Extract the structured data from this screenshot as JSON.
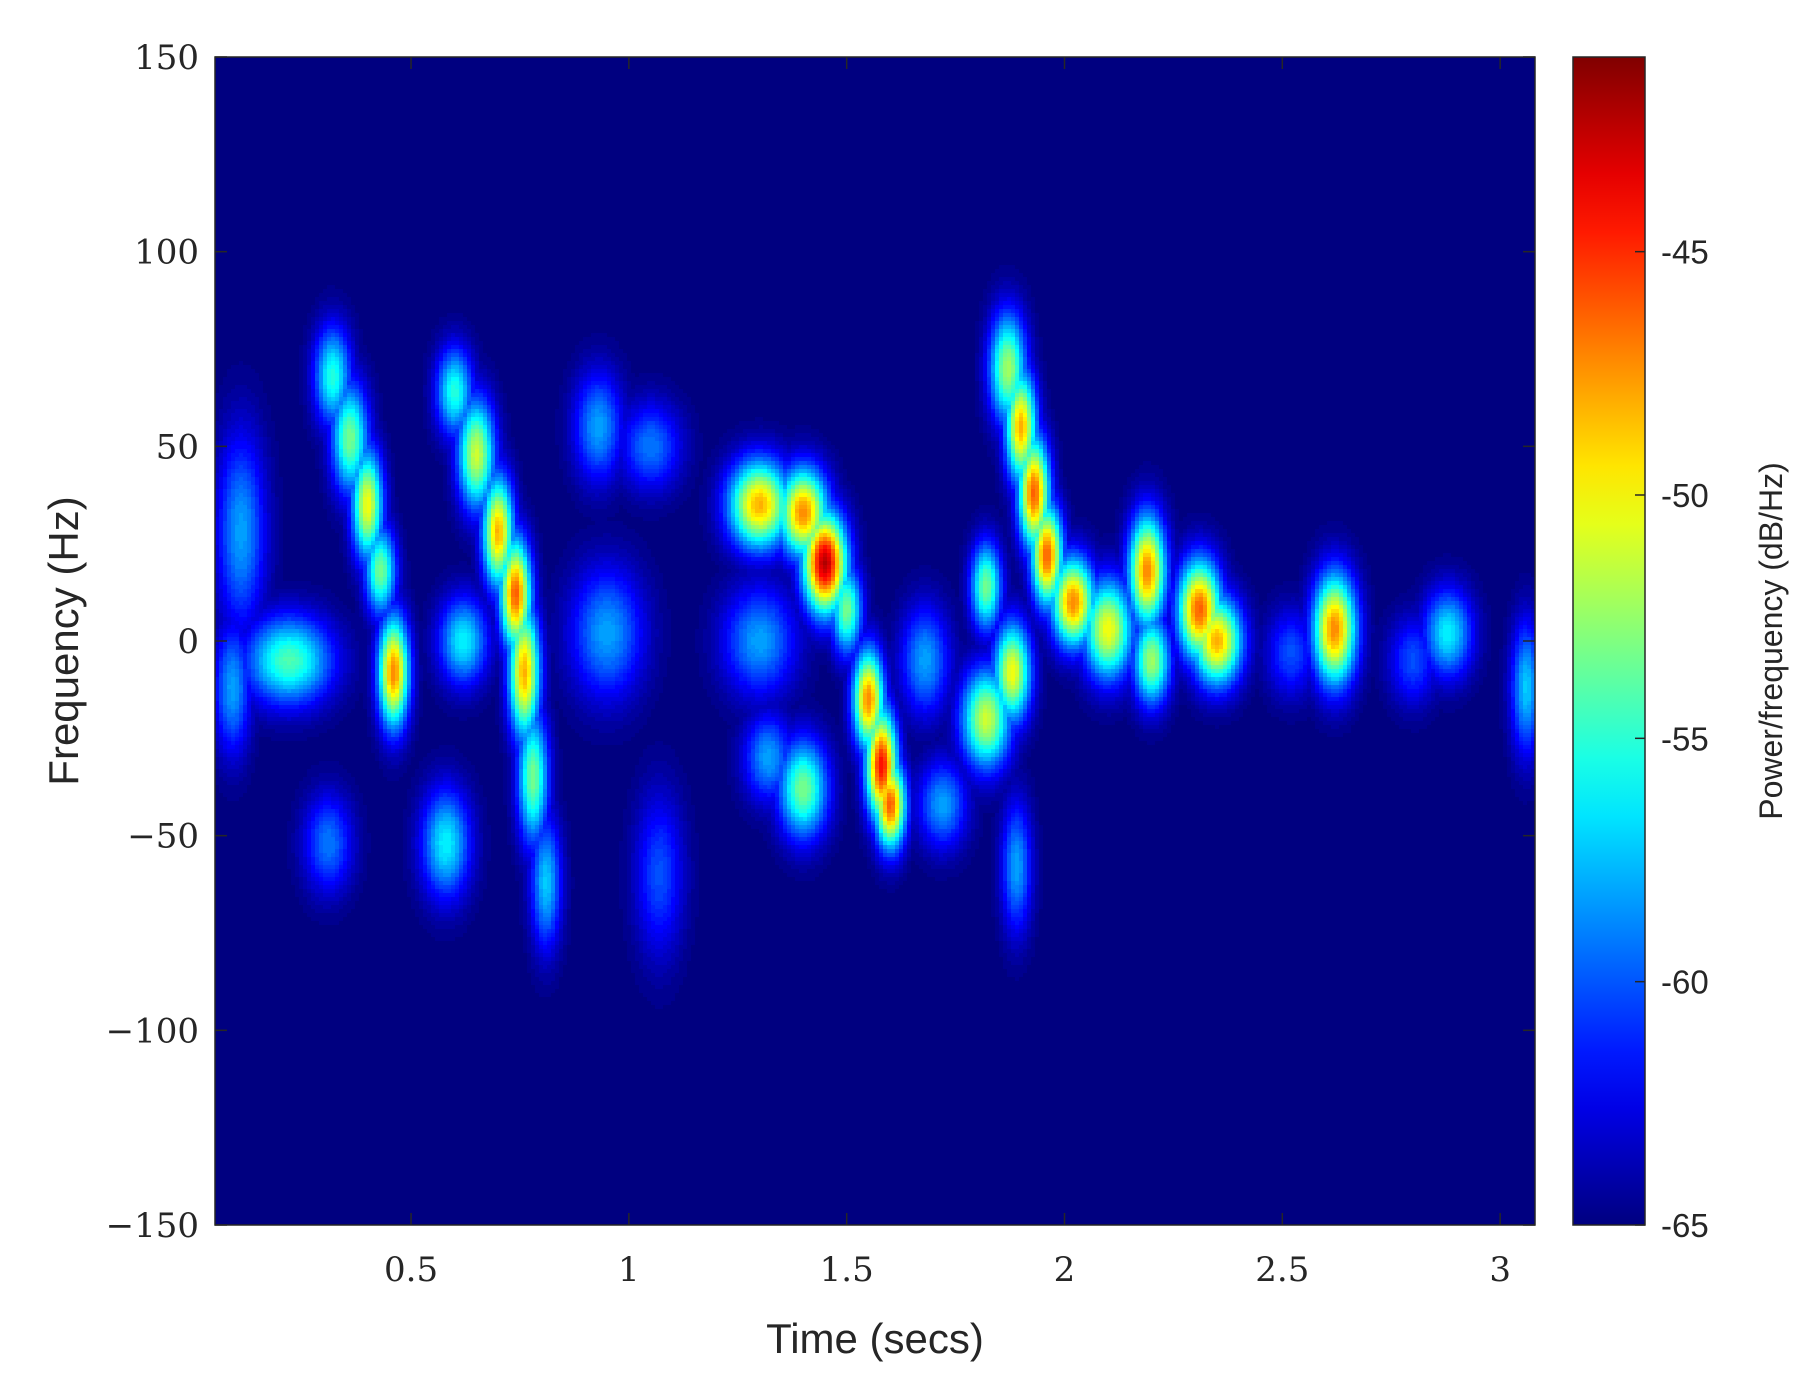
{
  "chart_data": {
    "type": "heatmap",
    "title": "",
    "xlabel": "Time (secs)",
    "ylabel": "Frequency (Hz)",
    "xlim": [
      0.05,
      3.08
    ],
    "ylim": [
      -150,
      150
    ],
    "x_ticks": [
      0.5,
      1,
      1.5,
      2,
      2.5,
      3
    ],
    "x_tick_labels": [
      "0.5",
      "1",
      "1.5",
      "2",
      "2.5",
      "3"
    ],
    "y_ticks": [
      150,
      100,
      50,
      0,
      -50,
      -100,
      -150
    ],
    "y_tick_labels": [
      "150",
      "100",
      "50",
      "0",
      "−50",
      "−100",
      "−150"
    ],
    "colorbar": {
      "label": "Power/frequency (dB/Hz)",
      "range": [
        -65,
        -41
      ],
      "ticks": [
        -45,
        -50,
        -55,
        -60,
        -65
      ],
      "tick_labels": [
        "-45",
        "-50",
        "-55",
        "-60",
        "-65"
      ],
      "colormap": "jet"
    },
    "background_level": -65,
    "blobs": [
      {
        "t": 0.32,
        "f": 68,
        "level": -55,
        "st": 0.03,
        "sf": 9
      },
      {
        "t": 0.36,
        "f": 52,
        "level": -53,
        "st": 0.03,
        "sf": 10
      },
      {
        "t": 0.4,
        "f": 35,
        "level": -50,
        "st": 0.025,
        "sf": 10
      },
      {
        "t": 0.43,
        "f": 18,
        "level": -53,
        "st": 0.025,
        "sf": 8
      },
      {
        "t": 0.46,
        "f": -8,
        "level": -47,
        "st": 0.025,
        "sf": 10
      },
      {
        "t": 0.22,
        "f": -5,
        "level": -54,
        "st": 0.07,
        "sf": 8
      },
      {
        "t": 0.11,
        "f": 28,
        "level": -58,
        "st": 0.04,
        "sf": 18
      },
      {
        "t": 0.09,
        "f": -12,
        "level": -58,
        "st": 0.03,
        "sf": 12
      },
      {
        "t": 0.31,
        "f": -52,
        "level": -59,
        "st": 0.04,
        "sf": 9
      },
      {
        "t": 0.6,
        "f": 64,
        "level": -55,
        "st": 0.03,
        "sf": 8
      },
      {
        "t": 0.65,
        "f": 48,
        "level": -51,
        "st": 0.03,
        "sf": 10
      },
      {
        "t": 0.7,
        "f": 28,
        "level": -48,
        "st": 0.025,
        "sf": 10
      },
      {
        "t": 0.74,
        "f": 12,
        "level": -46,
        "st": 0.025,
        "sf": 10
      },
      {
        "t": 0.76,
        "f": -8,
        "level": -48,
        "st": 0.025,
        "sf": 12
      },
      {
        "t": 0.78,
        "f": -35,
        "level": -53,
        "st": 0.025,
        "sf": 12
      },
      {
        "t": 0.81,
        "f": -62,
        "level": -57,
        "st": 0.025,
        "sf": 12
      },
      {
        "t": 0.58,
        "f": -52,
        "level": -56,
        "st": 0.04,
        "sf": 10
      },
      {
        "t": 0.62,
        "f": 0,
        "level": -56,
        "st": 0.04,
        "sf": 8
      },
      {
        "t": 0.93,
        "f": 55,
        "level": -58,
        "st": 0.04,
        "sf": 10
      },
      {
        "t": 1.05,
        "f": 50,
        "level": -59,
        "st": 0.05,
        "sf": 8
      },
      {
        "t": 0.95,
        "f": 2,
        "level": -58,
        "st": 0.06,
        "sf": 12
      },
      {
        "t": 1.07,
        "f": -60,
        "level": -60,
        "st": 0.04,
        "sf": 15
      },
      {
        "t": 1.3,
        "f": 35,
        "level": -48,
        "st": 0.05,
        "sf": 8
      },
      {
        "t": 1.4,
        "f": 33,
        "level": -47,
        "st": 0.04,
        "sf": 8
      },
      {
        "t": 1.45,
        "f": 20,
        "level": -42,
        "st": 0.035,
        "sf": 9
      },
      {
        "t": 1.5,
        "f": 8,
        "level": -53,
        "st": 0.025,
        "sf": 8
      },
      {
        "t": 1.55,
        "f": -15,
        "level": -47,
        "st": 0.025,
        "sf": 9
      },
      {
        "t": 1.58,
        "f": -32,
        "level": -44,
        "st": 0.025,
        "sf": 10
      },
      {
        "t": 1.6,
        "f": -42,
        "level": -46,
        "st": 0.025,
        "sf": 8
      },
      {
        "t": 1.4,
        "f": -38,
        "level": -53,
        "st": 0.04,
        "sf": 9
      },
      {
        "t": 1.32,
        "f": -30,
        "level": -58,
        "st": 0.04,
        "sf": 8
      },
      {
        "t": 1.3,
        "f": 0,
        "level": -58,
        "st": 0.06,
        "sf": 10
      },
      {
        "t": 1.68,
        "f": -5,
        "level": -58,
        "st": 0.04,
        "sf": 10
      },
      {
        "t": 1.72,
        "f": -42,
        "level": -58,
        "st": 0.04,
        "sf": 8
      },
      {
        "t": 1.87,
        "f": 70,
        "level": -52,
        "st": 0.03,
        "sf": 10
      },
      {
        "t": 1.9,
        "f": 55,
        "level": -48,
        "st": 0.025,
        "sf": 10
      },
      {
        "t": 1.93,
        "f": 38,
        "level": -46,
        "st": 0.025,
        "sf": 10
      },
      {
        "t": 1.96,
        "f": 22,
        "level": -46,
        "st": 0.025,
        "sf": 9
      },
      {
        "t": 2.02,
        "f": 10,
        "level": -47,
        "st": 0.035,
        "sf": 8
      },
      {
        "t": 1.82,
        "f": -20,
        "level": -51,
        "st": 0.04,
        "sf": 9
      },
      {
        "t": 1.88,
        "f": -8,
        "level": -50,
        "st": 0.03,
        "sf": 9
      },
      {
        "t": 1.82,
        "f": 14,
        "level": -53,
        "st": 0.025,
        "sf": 8
      },
      {
        "t": 1.89,
        "f": -58,
        "level": -58,
        "st": 0.025,
        "sf": 12
      },
      {
        "t": 2.1,
        "f": 3,
        "level": -50,
        "st": 0.04,
        "sf": 9
      },
      {
        "t": 2.19,
        "f": 18,
        "level": -47,
        "st": 0.03,
        "sf": 10
      },
      {
        "t": 2.2,
        "f": -5,
        "level": -52,
        "st": 0.03,
        "sf": 8
      },
      {
        "t": 2.31,
        "f": 8,
        "level": -46,
        "st": 0.035,
        "sf": 9
      },
      {
        "t": 2.35,
        "f": 0,
        "level": -48,
        "st": 0.04,
        "sf": 8
      },
      {
        "t": 2.62,
        "f": 3,
        "level": -47,
        "st": 0.035,
        "sf": 10
      },
      {
        "t": 2.88,
        "f": 2,
        "level": -56,
        "st": 0.04,
        "sf": 8
      },
      {
        "t": 3.06,
        "f": -12,
        "level": -57,
        "st": 0.025,
        "sf": 12
      },
      {
        "t": 2.8,
        "f": -5,
        "level": -60,
        "st": 0.04,
        "sf": 8
      },
      {
        "t": 2.52,
        "f": -3,
        "level": -60,
        "st": 0.04,
        "sf": 8
      }
    ]
  }
}
